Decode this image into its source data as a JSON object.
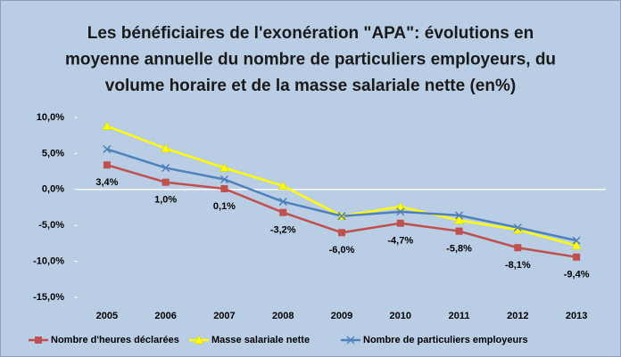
{
  "chart_data": {
    "type": "line",
    "title": [
      "Les bénéficiaires de l'exonération \"APA\": évolutions en",
      "moyenne annuelle du nombre de particuliers employeurs, du",
      "volume horaire et de la masse salariale nette (en%)"
    ],
    "categories": [
      "2005",
      "2006",
      "2007",
      "2008",
      "2009",
      "2010",
      "2011",
      "2012",
      "2013"
    ],
    "series": [
      {
        "name": "Nombre d'heures déclarées",
        "color": "#c0504d",
        "marker": "square",
        "values": [
          3.4,
          1.0,
          0.1,
          -3.2,
          -6.0,
          -4.7,
          -5.8,
          -8.1,
          -9.4
        ],
        "value_labels": [
          "3,4%",
          "1,0%",
          "0,1%",
          "-3,2%",
          "-6,0%",
          "-4,7%",
          "-5,8%",
          "-8,1%",
          "-9,4%"
        ]
      },
      {
        "name": "Masse salariale nette",
        "color": "#ffff00",
        "marker": "triangle",
        "values": [
          8.8,
          5.7,
          3.0,
          0.5,
          -3.7,
          -2.4,
          -4.3,
          -5.6,
          -7.8
        ]
      },
      {
        "name": "Nombre de particuliers employeurs",
        "color": "#4f81bd",
        "marker": "x",
        "values": [
          5.6,
          3.0,
          1.4,
          -1.7,
          -3.7,
          -3.1,
          -3.6,
          -5.3,
          -7.1
        ]
      }
    ],
    "ylim": [
      -15,
      10
    ],
    "yticks": [
      {
        "value": 10,
        "label": "10,0%"
      },
      {
        "value": 5,
        "label": "5,0%"
      },
      {
        "value": 0,
        "label": "0,0%"
      },
      {
        "value": -5,
        "label": "-5,0%"
      },
      {
        "value": -10,
        "label": "-10,0%"
      },
      {
        "value": -15,
        "label": "-15,0%"
      }
    ],
    "grid": false,
    "legend": "bottom"
  }
}
